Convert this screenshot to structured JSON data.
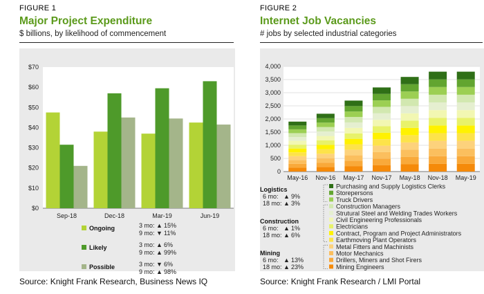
{
  "figure1": {
    "label": "FIGURE 1",
    "title": "Major Project Expenditure",
    "subtitle": "$ billions, by likelihood of commencement",
    "source": "Source: Knight Frank Research, Business News IQ"
  },
  "figure2": {
    "label": "FIGURE 2",
    "title": "Internet Job Vacancies",
    "subtitle": "# jobs by selected industrial categories",
    "source": "Source: Knight Frank Research / LMI Portal"
  },
  "chart_data": [
    {
      "type": "bar",
      "title": "Major Project Expenditure",
      "subtitle": "$ billions, by likelihood of commencement",
      "categories": [
        "Sep-18",
        "Dec-18",
        "Mar-19",
        "Jun-19"
      ],
      "ylim": [
        0,
        70
      ],
      "yticks": [
        "$0",
        "$10",
        "$20",
        "$30",
        "$40",
        "$50",
        "$60",
        "$70"
      ],
      "grid": false,
      "legend_position": "bottom",
      "series": [
        {
          "name": "Ongoing",
          "color": "#b3d336",
          "values": [
            47.5,
            38,
            37,
            42.5
          ],
          "stats": [
            {
              "label": "3 mo:",
              "arrow": "▲",
              "value": "15%"
            },
            {
              "label": "9 mo:",
              "arrow": "▼",
              "value": "11%"
            }
          ]
        },
        {
          "name": "Likely",
          "color": "#4e9a2a",
          "values": [
            31.5,
            57,
            59.5,
            63
          ],
          "stats": [
            {
              "label": "3 mo:",
              "arrow": "▲",
              "value": "6%"
            },
            {
              "label": "9 mo:",
              "arrow": "▲",
              "value": "99%"
            }
          ]
        },
        {
          "name": "Possible",
          "color": "#a4b58a",
          "values": [
            21,
            45,
            44.5,
            41.5
          ],
          "stats": [
            {
              "label": "3 mo:",
              "arrow": "▼",
              "value": "6%"
            },
            {
              "label": "9 mo:",
              "arrow": "▲",
              "value": "98%"
            }
          ]
        }
      ]
    },
    {
      "type": "bar",
      "stacked": true,
      "title": "Internet Job Vacancies",
      "subtitle": "# jobs by selected industrial categories",
      "categories": [
        "May-16",
        "Nov-16",
        "May-17",
        "Nov-17",
        "May-18",
        "Nov-18",
        "May-19"
      ],
      "ylim": [
        0,
        4000
      ],
      "yticks": [
        "0",
        "500",
        "1,000",
        "1,500",
        "2,000",
        "2,500",
        "3,000",
        "3,500",
        "4,000"
      ],
      "totals": [
        1900,
        2200,
        2700,
        3200,
        3600,
        3800,
        3800
      ],
      "grid": true,
      "series": [
        {
          "name": "Mining Engineers",
          "color": "#f58a0a"
        },
        {
          "name": "Drillers, Miners and Shot Firers",
          "color": "#f9a93a"
        },
        {
          "name": "Motor Mechanics",
          "color": "#fbbf5e"
        },
        {
          "name": "Metal Fitters and Machinists",
          "color": "#fdd27c"
        },
        {
          "name": "Earthmoving Plant Operators",
          "color": "#fde34a"
        },
        {
          "name": "Contract, Program and Project Administrators",
          "color": "#fff200"
        },
        {
          "name": "Electricians",
          "color": "#e8f26a"
        },
        {
          "name": "Civil Engineering Professionals",
          "color": "#f2f7b2"
        },
        {
          "name": "Strutural Steel and Welding Trades Workers",
          "color": "#e5efd0"
        },
        {
          "name": "Construction Managers",
          "color": "#d2e8b0"
        },
        {
          "name": "Truck Drivers",
          "color": "#9ccf53"
        },
        {
          "name": "Storepersons",
          "color": "#62a530"
        },
        {
          "name": "Purchasing and Supply Logistics Clerks",
          "color": "#2f6f17"
        }
      ],
      "groups": [
        {
          "name": "Logistics",
          "stats": [
            {
              "label": "6 mo:",
              "arrow": "▲",
              "value": "9%"
            },
            {
              "label": "18 mo:",
              "arrow": "▲",
              "value": "3%"
            }
          ]
        },
        {
          "name": "Construction",
          "stats": [
            {
              "label": "6 mo:",
              "arrow": "▲",
              "value": "1%"
            },
            {
              "label": "18 mo:",
              "arrow": "▲",
              "value": "6%"
            }
          ]
        },
        {
          "name": "Mining",
          "stats": [
            {
              "label": "6 mo:",
              "arrow": "▲",
              "value": "13%"
            },
            {
              "label": "18 mo:",
              "arrow": "▲",
              "value": "23%"
            }
          ]
        }
      ]
    }
  ]
}
